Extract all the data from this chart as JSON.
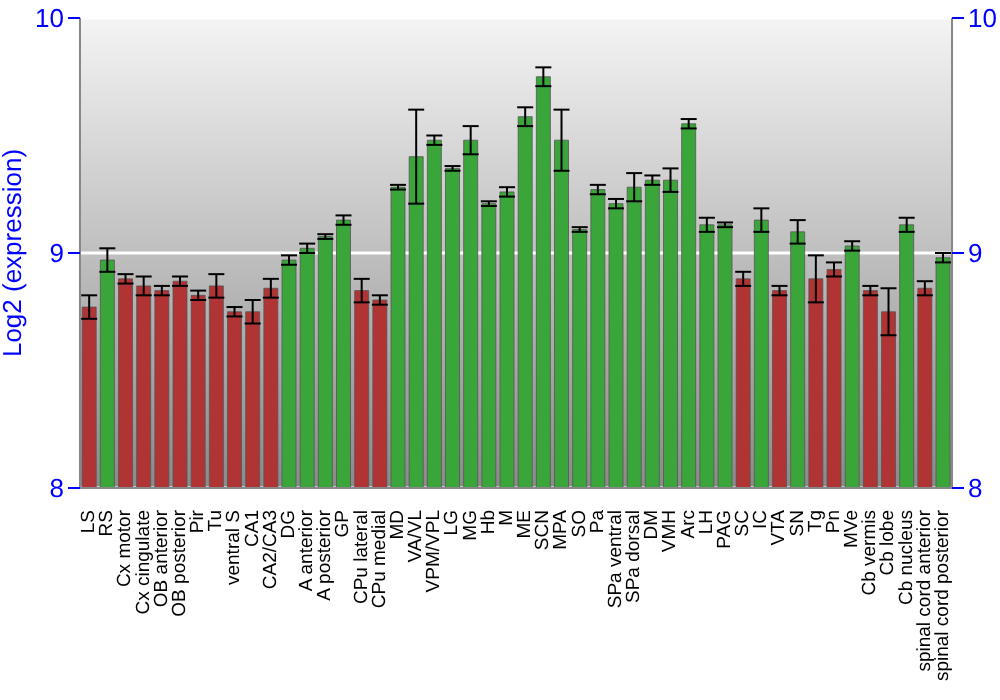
{
  "chart_data": {
    "type": "bar",
    "ylabel": "Log2 (expression)",
    "categories": [
      "LS",
      "RS",
      "Cx motor",
      "Cx cingulate",
      "OB anterior",
      "OB posterior",
      "Pir",
      "Tu",
      "ventral S",
      "CA1",
      "CA2/CA3",
      "DG",
      "A anterior",
      "A posterior",
      "GP",
      "CPu lateral",
      "CPu medial",
      "MD",
      "VA/VL",
      "VPM/VPL",
      "LG",
      "MG",
      "Hb",
      "M",
      "ME",
      "SCN",
      "MPA",
      "SO",
      "Pa",
      "SPa ventral",
      "SPa dorsal",
      "DM",
      "VMH",
      "Arc",
      "LH",
      "PAG",
      "SC",
      "IC",
      "VTA",
      "SN",
      "Tg",
      "Pn",
      "MVe",
      "Cb vermis",
      "Cb lobe",
      "Cb nucleus",
      "spinal cord anterior",
      "spinal cord posterior"
    ],
    "values": [
      8.77,
      8.97,
      8.89,
      8.86,
      8.84,
      8.88,
      8.82,
      8.86,
      8.75,
      8.75,
      8.85,
      8.97,
      9.02,
      9.07,
      9.14,
      8.84,
      8.8,
      9.28,
      9.41,
      9.48,
      9.36,
      9.48,
      9.21,
      9.26,
      9.58,
      9.75,
      9.48,
      9.1,
      9.27,
      9.21,
      9.28,
      9.31,
      9.31,
      9.55,
      9.12,
      9.12,
      8.89,
      9.14,
      8.84,
      9.09,
      8.89,
      8.93,
      9.03,
      8.84,
      8.75,
      9.12,
      8.85,
      8.98
    ],
    "errors": [
      0.05,
      0.05,
      0.02,
      0.04,
      0.02,
      0.02,
      0.02,
      0.05,
      0.02,
      0.05,
      0.04,
      0.02,
      0.02,
      0.01,
      0.02,
      0.05,
      0.02,
      0.01,
      0.2,
      0.02,
      0.01,
      0.06,
      0.01,
      0.02,
      0.04,
      0.04,
      0.13,
      0.01,
      0.02,
      0.02,
      0.06,
      0.02,
      0.05,
      0.02,
      0.03,
      0.01,
      0.03,
      0.05,
      0.02,
      0.05,
      0.1,
      0.03,
      0.02,
      0.02,
      0.1,
      0.03,
      0.03,
      0.02
    ],
    "colors": [
      "#b03434",
      "#3aa63a",
      "#b03434",
      "#b03434",
      "#b03434",
      "#b03434",
      "#b03434",
      "#b03434",
      "#b03434",
      "#b03434",
      "#b03434",
      "#3aa63a",
      "#3aa63a",
      "#3aa63a",
      "#3aa63a",
      "#b03434",
      "#b03434",
      "#3aa63a",
      "#3aa63a",
      "#3aa63a",
      "#3aa63a",
      "#3aa63a",
      "#3aa63a",
      "#3aa63a",
      "#3aa63a",
      "#3aa63a",
      "#3aa63a",
      "#3aa63a",
      "#3aa63a",
      "#3aa63a",
      "#3aa63a",
      "#3aa63a",
      "#3aa63a",
      "#3aa63a",
      "#3aa63a",
      "#3aa63a",
      "#b03434",
      "#3aa63a",
      "#b03434",
      "#3aa63a",
      "#b03434",
      "#b03434",
      "#3aa63a",
      "#b03434",
      "#b03434",
      "#3aa63a",
      "#b03434",
      "#3aa63a"
    ],
    "ylim": [
      8,
      10
    ],
    "yticks": [
      8,
      9,
      10
    ],
    "y2lim": [
      8,
      10
    ],
    "y2ticks": [
      8,
      9,
      10
    ],
    "grid": "y"
  }
}
